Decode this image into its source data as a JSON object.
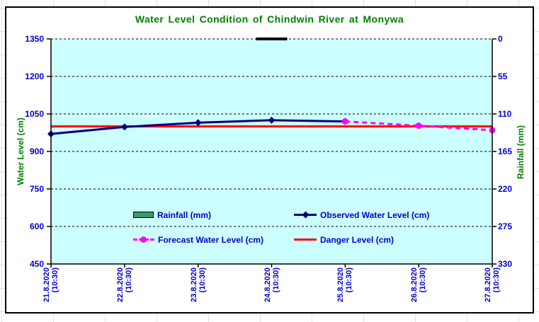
{
  "chart_data": {
    "type": "line",
    "title": "Water Level Condition of Chindwin River at  Monywa",
    "categories": [
      "21.8.2020 (10:30)",
      "22.8.2020 (10:30)",
      "23.8.2020 (10:30)",
      "24.8.2020 (10:30)",
      "25.8.2020 (10:30)",
      "26.8.2020 (10:30)",
      "27.8.2020 (10:30)"
    ],
    "left_axis": {
      "label": "Water Level (cm)",
      "min": 450,
      "max": 1350,
      "ticks": [
        1350,
        1200,
        1050,
        900,
        750,
        600,
        450
      ]
    },
    "right_axis": {
      "label": "Rainfall (mm)",
      "min": 0,
      "max": 330,
      "ticks": [
        0,
        55,
        110,
        165,
        220,
        275,
        330
      ],
      "inverted": true
    },
    "grid": "horizontal dashed black",
    "plot_background": "#CCFFFF",
    "legend_position": "inside-bottom two-column",
    "series": [
      {
        "name": "Rainfall (mm)",
        "type": "bar",
        "axis": "right",
        "color": "#3D9970",
        "values": [
          null,
          null,
          null,
          0,
          null,
          null,
          null
        ]
      },
      {
        "name": "Observed Water Level (cm)",
        "type": "line",
        "axis": "left",
        "color": "#000080",
        "marker": "diamond",
        "values": [
          970,
          998,
          1015,
          1025,
          1020,
          null,
          null
        ]
      },
      {
        "name": "Forecast Water Level (cm)",
        "type": "line",
        "axis": "left",
        "color": "#FF00FF",
        "dashed": true,
        "marker": "circle",
        "values": [
          null,
          null,
          null,
          null,
          1020,
          1003,
          985
        ]
      },
      {
        "name": "Danger Level (cm)",
        "type": "line",
        "axis": "left",
        "color": "#FF0000",
        "full_width": true,
        "values": [
          1000,
          1000,
          1000,
          1000,
          1000,
          1000,
          1000
        ]
      }
    ]
  },
  "colors": {
    "title_text": "#008000",
    "axis_title_text": "#008000",
    "tick_label_text": "#0000CC",
    "legend_text": "#0000CC",
    "plot_background": "#CCFFFF",
    "observed_line": "#000080",
    "forecast_line": "#FF00FF",
    "danger_line": "#FF0000",
    "rainfall_swatch": "#3D9970",
    "chart_border": "#000000"
  }
}
